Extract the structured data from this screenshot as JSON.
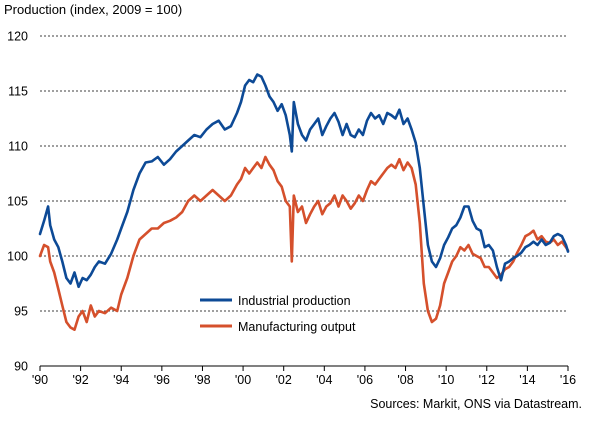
{
  "chart_data": {
    "type": "line",
    "ylabel": "Production (index, 2009 = 100)",
    "source": "Sources: Markit, ONS via Datastream.",
    "ylim": [
      90,
      120
    ],
    "yticks": [
      90,
      95,
      100,
      105,
      110,
      115,
      120
    ],
    "xlim": [
      1990,
      2016
    ],
    "xticks": [
      1990,
      1992,
      1994,
      1996,
      1998,
      2000,
      2002,
      2004,
      2006,
      2008,
      2010,
      2012,
      2014,
      2016
    ],
    "xtick_labels": [
      "'90",
      "'92",
      "'94",
      "'96",
      "'98",
      "'00",
      "'02",
      "'04",
      "'06",
      "'08",
      "'10",
      "'12",
      "'14",
      "'16"
    ],
    "grid": "horizontal dashed",
    "legend_position": "bottom-center",
    "series": [
      {
        "name": "Industrial production",
        "color": "#0d4a96",
        "x": [
          1990.0,
          1990.2,
          1990.4,
          1990.5,
          1990.7,
          1990.9,
          1991.1,
          1991.3,
          1991.5,
          1991.7,
          1991.9,
          1992.1,
          1992.3,
          1992.5,
          1992.7,
          1992.9,
          1993.2,
          1993.5,
          1993.8,
          1994.0,
          1994.3,
          1994.6,
          1994.9,
          1995.2,
          1995.5,
          1995.8,
          1996.1,
          1996.4,
          1996.7,
          1997.0,
          1997.3,
          1997.6,
          1997.9,
          1998.2,
          1998.5,
          1998.8,
          1999.1,
          1999.4,
          1999.7,
          1999.9,
          2000.1,
          2000.3,
          2000.5,
          2000.7,
          2000.9,
          2001.1,
          2001.3,
          2001.5,
          2001.7,
          2001.9,
          2002.1,
          2002.3,
          2002.4,
          2002.5,
          2002.7,
          2002.9,
          2003.1,
          2003.3,
          2003.5,
          2003.7,
          2003.9,
          2004.1,
          2004.3,
          2004.5,
          2004.7,
          2004.9,
          2005.1,
          2005.3,
          2005.5,
          2005.7,
          2005.9,
          2006.1,
          2006.3,
          2006.5,
          2006.7,
          2006.9,
          2007.1,
          2007.3,
          2007.5,
          2007.7,
          2007.9,
          2008.1,
          2008.3,
          2008.5,
          2008.7,
          2008.9,
          2009.1,
          2009.3,
          2009.5,
          2009.7,
          2009.9,
          2010.1,
          2010.3,
          2010.5,
          2010.7,
          2010.9,
          2011.1,
          2011.3,
          2011.5,
          2011.7,
          2011.9,
          2012.1,
          2012.3,
          2012.5,
          2012.7,
          2012.9,
          2013.1,
          2013.3,
          2013.5,
          2013.7,
          2013.9,
          2014.1,
          2014.3,
          2014.5,
          2014.7,
          2014.9,
          2015.1,
          2015.3,
          2015.5,
          2015.7,
          2015.9,
          2016.0
        ],
        "values": [
          102.0,
          103.2,
          104.5,
          102.8,
          101.5,
          100.8,
          99.5,
          98.0,
          97.5,
          98.5,
          97.2,
          98.0,
          97.8,
          98.3,
          99.0,
          99.5,
          99.3,
          100.2,
          101.5,
          102.5,
          104.0,
          106.0,
          107.5,
          108.5,
          108.6,
          109.0,
          108.3,
          108.8,
          109.5,
          110.0,
          110.5,
          111.0,
          110.8,
          111.5,
          112.0,
          112.3,
          111.5,
          111.8,
          113.0,
          114.0,
          115.5,
          116.0,
          115.8,
          116.5,
          116.3,
          115.5,
          114.5,
          114.0,
          113.2,
          113.8,
          112.8,
          111.0,
          109.5,
          114.0,
          112.0,
          111.0,
          110.5,
          111.5,
          112.0,
          112.5,
          111.0,
          111.8,
          112.5,
          113.0,
          112.2,
          111.0,
          112.0,
          111.0,
          110.8,
          111.5,
          111.0,
          112.3,
          113.0,
          112.5,
          112.8,
          112.0,
          113.0,
          112.8,
          112.5,
          113.3,
          112.0,
          112.5,
          111.5,
          110.3,
          108.0,
          104.5,
          101.0,
          99.5,
          99.0,
          99.8,
          101.0,
          101.7,
          102.5,
          102.8,
          103.5,
          104.5,
          104.5,
          103.2,
          102.5,
          102.3,
          100.8,
          101.0,
          100.5,
          99.0,
          97.8,
          99.3,
          99.5,
          99.8,
          100.0,
          100.3,
          100.8,
          101.0,
          101.3,
          101.0,
          101.5,
          101.0,
          101.2,
          101.8,
          102.0,
          101.8,
          101.0,
          100.4
        ]
      },
      {
        "name": "Manufacturing output",
        "color": "#d5502c",
        "x": [
          1990.0,
          1990.2,
          1990.4,
          1990.5,
          1990.7,
          1990.9,
          1991.1,
          1991.3,
          1991.5,
          1991.7,
          1991.9,
          1992.1,
          1992.3,
          1992.5,
          1992.7,
          1992.9,
          1993.2,
          1993.5,
          1993.8,
          1994.0,
          1994.3,
          1994.6,
          1994.9,
          1995.2,
          1995.5,
          1995.8,
          1996.1,
          1996.4,
          1996.7,
          1997.0,
          1997.3,
          1997.6,
          1997.9,
          1998.2,
          1998.5,
          1998.8,
          1999.1,
          1999.4,
          1999.7,
          1999.9,
          2000.1,
          2000.3,
          2000.5,
          2000.7,
          2000.9,
          2001.1,
          2001.3,
          2001.5,
          2001.7,
          2001.9,
          2002.1,
          2002.3,
          2002.4,
          2002.5,
          2002.7,
          2002.9,
          2003.1,
          2003.3,
          2003.5,
          2003.7,
          2003.9,
          2004.1,
          2004.3,
          2004.5,
          2004.7,
          2004.9,
          2005.1,
          2005.3,
          2005.5,
          2005.7,
          2005.9,
          2006.1,
          2006.3,
          2006.5,
          2006.7,
          2006.9,
          2007.1,
          2007.3,
          2007.5,
          2007.7,
          2007.9,
          2008.1,
          2008.3,
          2008.5,
          2008.7,
          2008.9,
          2009.1,
          2009.3,
          2009.5,
          2009.7,
          2009.9,
          2010.1,
          2010.3,
          2010.5,
          2010.7,
          2010.9,
          2011.1,
          2011.3,
          2011.5,
          2011.7,
          2011.9,
          2012.1,
          2012.3,
          2012.5,
          2012.7,
          2012.9,
          2013.1,
          2013.3,
          2013.5,
          2013.7,
          2013.9,
          2014.1,
          2014.3,
          2014.5,
          2014.7,
          2014.9,
          2015.1,
          2015.3,
          2015.5,
          2015.7,
          2015.9,
          2016.0
        ],
        "values": [
          100.0,
          101.0,
          100.8,
          99.5,
          98.5,
          97.0,
          95.5,
          94.0,
          93.5,
          93.3,
          94.5,
          95.0,
          94.0,
          95.5,
          94.5,
          95.0,
          94.8,
          95.3,
          95.0,
          96.5,
          98.0,
          100.0,
          101.5,
          102.0,
          102.5,
          102.5,
          103.0,
          103.2,
          103.5,
          104.0,
          105.0,
          105.5,
          105.0,
          105.5,
          106.0,
          105.5,
          105.0,
          105.5,
          106.5,
          107.0,
          108.0,
          107.5,
          108.0,
          108.5,
          108.0,
          109.0,
          108.3,
          107.8,
          106.8,
          106.3,
          105.0,
          104.5,
          99.5,
          105.5,
          104.0,
          104.5,
          103.0,
          103.8,
          104.5,
          105.0,
          103.8,
          104.5,
          104.8,
          105.5,
          104.5,
          105.5,
          105.0,
          104.3,
          104.8,
          105.5,
          105.0,
          106.0,
          106.8,
          106.5,
          107.0,
          107.5,
          108.0,
          108.3,
          108.0,
          108.8,
          107.8,
          108.5,
          108.0,
          106.5,
          103.0,
          97.5,
          95.0,
          94.0,
          94.3,
          95.5,
          97.5,
          98.5,
          99.5,
          100.0,
          100.8,
          100.5,
          101.0,
          100.2,
          100.0,
          99.8,
          99.0,
          99.0,
          98.5,
          98.0,
          98.3,
          98.8,
          99.0,
          99.5,
          100.3,
          101.0,
          101.8,
          102.0,
          102.3,
          101.5,
          101.8,
          101.3,
          101.2,
          101.5,
          101.0,
          101.3,
          100.8,
          100.5
        ]
      }
    ]
  }
}
